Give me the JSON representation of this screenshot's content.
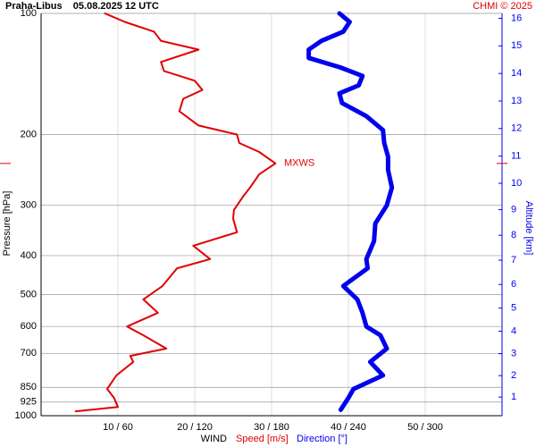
{
  "chart_data": {
    "type": "profile",
    "title": "Praha-Libus    05.08.2025 12 UTC",
    "credit": "CHMI © 2025",
    "ylabel": "Pressure [hPa]",
    "y2label": "Altitude [km]",
    "legend_title": "WIND",
    "ylog": true,
    "ylim": [
      100,
      1000
    ],
    "yticks": [
      100,
      200,
      300,
      400,
      500,
      600,
      700,
      850,
      925,
      1000
    ],
    "y2ticks": [
      1,
      2,
      3,
      4,
      5,
      6,
      7,
      8,
      9,
      10,
      11,
      12,
      13,
      14,
      15,
      16
    ],
    "xlim": [
      0,
      60
    ],
    "xticks": [
      {
        "value": 10,
        "label": "10 / 60"
      },
      {
        "value": 20,
        "label": "20 / 120"
      },
      {
        "value": 30,
        "label": "30 / 180"
      },
      {
        "value": 40,
        "label": "40 / 240"
      },
      {
        "value": 50,
        "label": "50 / 300"
      }
    ],
    "annotation": {
      "label": "MXWS",
      "value": 236
    },
    "series": [
      {
        "name": "Speed [m/s]",
        "color": "#e00000",
        "scale": 1,
        "pressure": [
          100,
          105,
          111,
          117,
          123,
          132,
          139,
          147,
          155,
          163,
          175,
          190,
          200,
          210,
          221,
          236,
          251,
          271,
          285,
          308,
          324,
          350,
          378,
          408,
          430,
          476,
          514,
          555,
          600,
          631,
          681,
          710,
          735,
          794,
          858,
          903,
          951,
          975
        ],
        "values": [
          8.3,
          10.9,
          14.7,
          15.6,
          20.5,
          15.6,
          16,
          20,
          21,
          18.5,
          18,
          20.5,
          25.5,
          25.8,
          28.4,
          30.5,
          28.4,
          27.2,
          26.3,
          25.1,
          25,
          25.5,
          19.8,
          22,
          17.7,
          15.8,
          13.3,
          15.2,
          11.2,
          13.3,
          16.3,
          11.6,
          12,
          9.8,
          8.6,
          9.5,
          10,
          4.5
        ]
      },
      {
        "name": "Direction [°]",
        "color": "#0000ee",
        "scale": 6,
        "pressure": [
          100,
          105,
          111,
          117,
          123,
          129,
          136,
          143,
          151,
          158,
          167,
          180,
          195,
          210,
          227,
          245,
          271,
          300,
          333,
          368,
          408,
          430,
          476,
          514,
          555,
          600,
          631,
          681,
          735,
          794,
          858,
          903,
          967
        ],
        "values": [
          233,
          241,
          236,
          219,
          209,
          209,
          233,
          251,
          248,
          233,
          235,
          254,
          267,
          268,
          271,
          271,
          274,
          270,
          261,
          260,
          254,
          255,
          236,
          247,
          251,
          254,
          265,
          270,
          257,
          267,
          244,
          240,
          234
        ]
      }
    ]
  }
}
